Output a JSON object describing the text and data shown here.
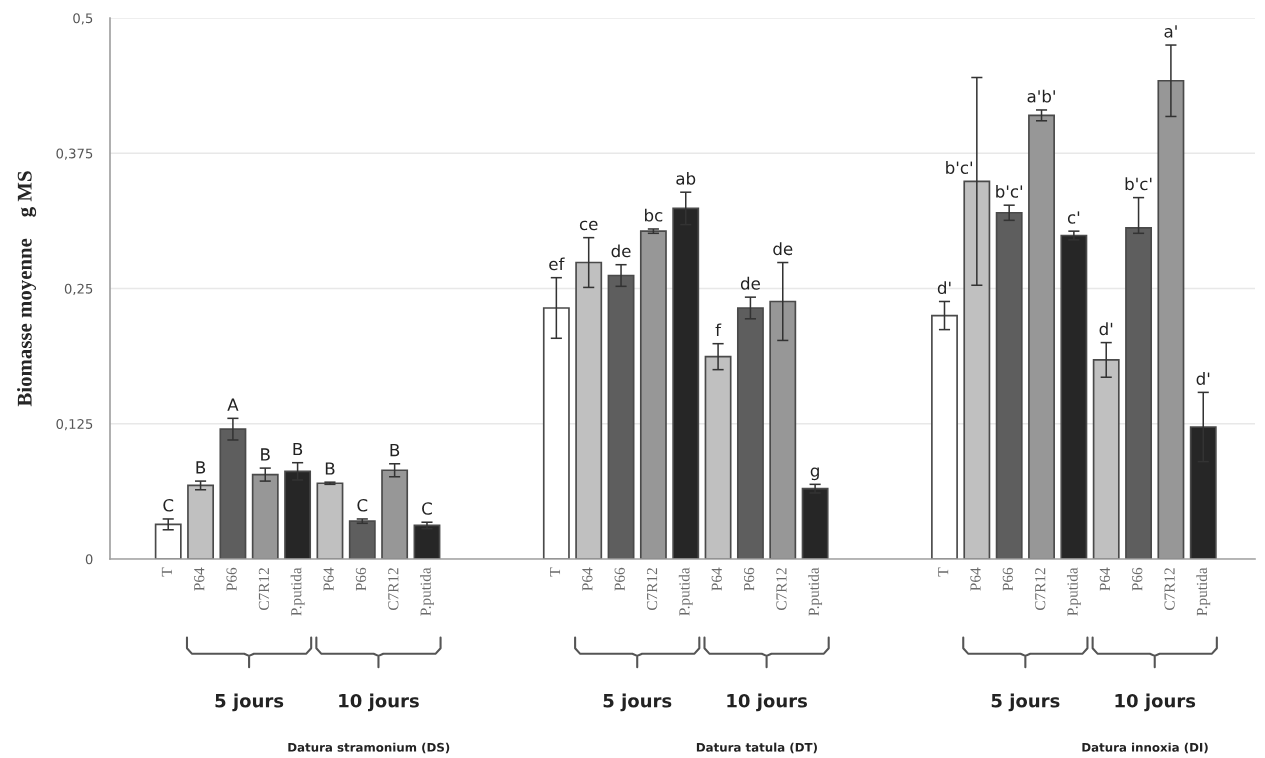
{
  "chart_data": {
    "type": "bar",
    "ylabel": "Biomasse moyenne    g MS",
    "categories": [
      "T",
      "P64",
      "P66",
      "C7R12",
      "P.putida",
      "P64",
      "P66",
      "C7R12",
      "P.putida",
      null,
      null,
      null,
      "T",
      "P64",
      "P66",
      "C7R12",
      "P.putida",
      "P64",
      "P66",
      "C7R12",
      "P.putida",
      null,
      null,
      null,
      "T",
      "P64",
      "P66",
      "C7R12",
      "P.putida",
      "P64",
      "P66",
      "C7R12",
      "P.putida"
    ],
    "values": [
      0.032,
      0.068,
      0.12,
      0.078,
      0.081,
      0.07,
      0.035,
      0.082,
      0.031,
      null,
      null,
      null,
      0.232,
      0.274,
      0.262,
      0.303,
      0.324,
      0.187,
      0.232,
      0.238,
      0.065,
      null,
      null,
      null,
      0.225,
      0.349,
      0.32,
      0.41,
      0.299,
      0.184,
      0.306,
      0.442,
      0.122
    ],
    "errors": [
      0.005,
      0.004,
      0.01,
      0.006,
      0.008,
      0.001,
      0.002,
      0.006,
      0.003,
      null,
      null,
      null,
      0.028,
      0.023,
      0.01,
      0.002,
      0.015,
      0.012,
      0.01,
      0.036,
      0.004,
      null,
      null,
      null,
      0.013,
      0.096,
      0.007,
      0.005,
      0.004,
      0.016,
      [
        0.301,
        0.334
      ],
      0.033,
      0.032
    ],
    "colors": [
      "#ffffff",
      "#c0c0c0",
      "#5e5e5e",
      "#979797",
      "#262626",
      "#c0c0c0",
      "#5e5e5e",
      "#979797",
      "#262626",
      null,
      null,
      null,
      "#ffffff",
      "#c0c0c0",
      "#5e5e5e",
      "#979797",
      "#262626",
      "#c0c0c0",
      "#5e5e5e",
      "#979797",
      "#262626",
      null,
      null,
      null,
      "#ffffff",
      "#c0c0c0",
      "#5e5e5e",
      "#979797",
      "#262626",
      "#c0c0c0",
      "#5e5e5e",
      "#979797",
      "#262626"
    ],
    "value_labels": [
      "C",
      "B",
      "A",
      "B",
      "B",
      "B",
      "C",
      "B",
      "C",
      null,
      null,
      null,
      "ef",
      "ce",
      "de",
      "bc",
      "ab",
      "f",
      "de",
      "de",
      "g",
      null,
      null,
      null,
      "d'",
      "b'c'",
      "b'c'",
      "a'b'",
      "c'",
      "d'",
      "b'c'",
      "a'",
      "d'"
    ],
    "ylim": [
      0,
      0.5
    ],
    "yticks": [
      0,
      {
        "value": 0.125,
        "label": "0,125"
      },
      {
        "value": 0.25,
        "label": "0,25"
      },
      {
        "value": 0.375,
        "label": "0,375"
      },
      {
        "value": 0.5,
        "label": "0,5"
      }
    ],
    "grid": "y",
    "annotations": [
      "5 jours",
      "10 jours",
      "Datura stramonium (DS)",
      "5 jours",
      "10 jours",
      "Datura tatula (DT)",
      "5 jours",
      "10 jours",
      "Datura innoxia (DI)"
    ]
  }
}
